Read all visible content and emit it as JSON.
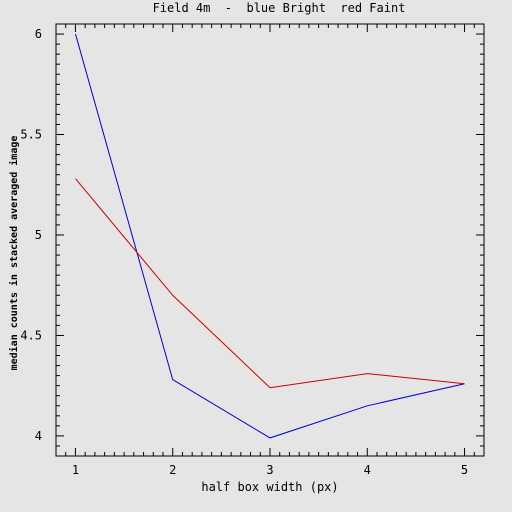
{
  "chart_data": {
    "type": "line",
    "title": "Field 4m  -  blue Bright  red Faint",
    "xlabel": "half box width (px)",
    "ylabel": "median counts in stacked averaged image",
    "xlim": [
      0.8,
      5.2
    ],
    "ylim": [
      3.9,
      6.05
    ],
    "x_ticks": [
      1,
      2,
      3,
      4,
      5
    ],
    "y_ticks": [
      4,
      4.5,
      5,
      5.5,
      6
    ],
    "x_tick_labels": [
      "1",
      "2",
      "3",
      "4",
      "5"
    ],
    "y_tick_labels": [
      "4",
      "4.5",
      "5",
      "5.5",
      "6"
    ],
    "x": [
      1,
      2,
      3,
      4,
      5
    ],
    "grid": false,
    "series": [
      {
        "color": "#0000cc",
        "values": [
          6.0,
          4.28,
          3.99,
          4.15,
          4.26
        ]
      },
      {
        "color": "#cc0000",
        "values": [
          5.28,
          4.7,
          4.24,
          4.31,
          4.26
        ]
      }
    ]
  }
}
